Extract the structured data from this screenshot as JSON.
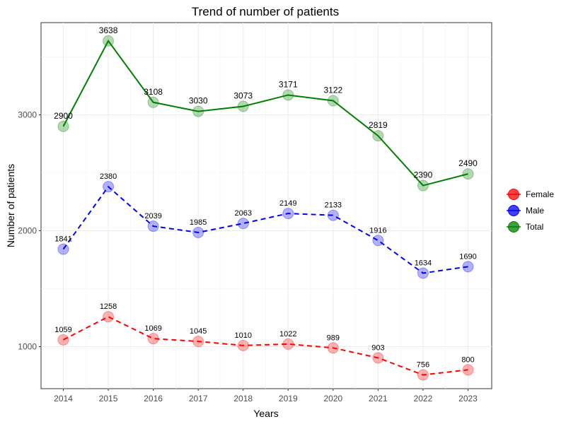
{
  "chart_data": {
    "type": "line",
    "title": "Trend of number of patients",
    "xlabel": "Years",
    "ylabel": "Number of patients",
    "x": [
      2014,
      2015,
      2016,
      2017,
      2018,
      2019,
      2020,
      2021,
      2022,
      2023
    ],
    "y_ticks": [
      1000,
      2000,
      3000
    ],
    "ylim": [
      600,
      3800
    ],
    "grid": true,
    "legend_position": "right",
    "series": [
      {
        "name": "Female",
        "values": [
          1059,
          1258,
          1069,
          1045,
          1010,
          1022,
          989,
          903,
          756,
          800
        ],
        "color": "#ff0000",
        "line_style": "dashed"
      },
      {
        "name": "Male",
        "values": [
          1841,
          2380,
          2039,
          1985,
          2063,
          2149,
          2133,
          1916,
          1634,
          1690
        ],
        "color": "#0000ff",
        "line_style": "dashed"
      },
      {
        "name": "Total",
        "values": [
          2900,
          3638,
          3108,
          3030,
          3073,
          3171,
          3122,
          2819,
          2390,
          2490
        ],
        "color": "#008000",
        "line_style": "solid"
      }
    ]
  }
}
